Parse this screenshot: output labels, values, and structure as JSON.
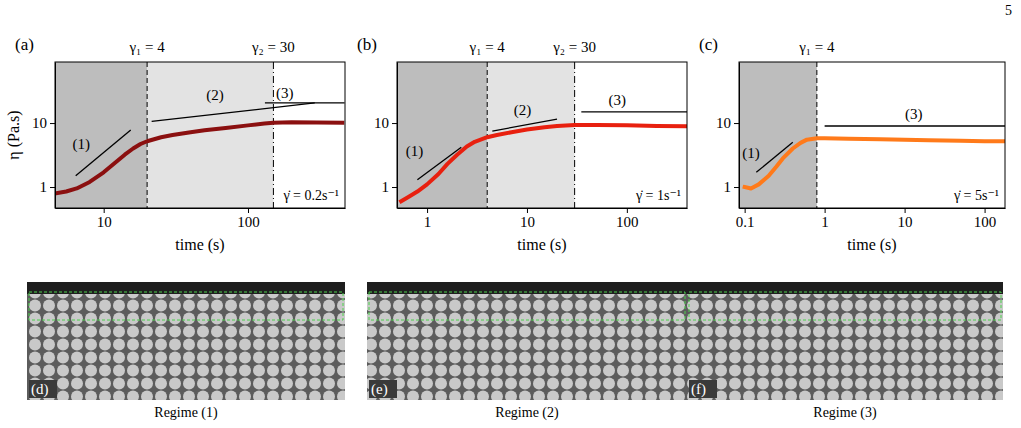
{
  "page_number": "5",
  "chart_data": [
    {
      "type": "line",
      "panel": "(a)",
      "log": true,
      "grid": false,
      "x_label": "time (s)",
      "y_label": "η (Pa.s)",
      "x": [
        4.7,
        5.5,
        6.5,
        8,
        10,
        12,
        14,
        16,
        18,
        20,
        25,
        30,
        40,
        50,
        70,
        100,
        130,
        150,
        200,
        300,
        450
      ],
      "values": [
        0.8,
        0.85,
        0.95,
        1.2,
        1.7,
        2.4,
        3.2,
        4.0,
        4.7,
        5.2,
        6.0,
        6.5,
        7.2,
        7.7,
        8.4,
        9.2,
        9.8,
        10.1,
        10.3,
        10.2,
        10.1
      ],
      "color": "#8b1010",
      "xlim": [
        4.6,
        470
      ],
      "ylim": [
        0.47,
        90
      ],
      "xticks": [
        10,
        100
      ],
      "yticks": [
        1,
        10
      ],
      "markers": [
        {
          "x": 20,
          "label": "γ₁ = 4",
          "line_style": "dashed"
        },
        {
          "x": 150,
          "label": "γ₂ = 30",
          "line_style": "dashdot"
        }
      ],
      "annotations": [
        {
          "text": "(1)",
          "x": 7,
          "y": 4.5,
          "line": {
            "x": [
              6.4,
              15.4
            ],
            "y": [
              1.5,
              7.8
            ]
          }
        },
        {
          "text": "(2)",
          "x": 59,
          "y": 25.5,
          "line": {
            "x": [
              21.5,
              290
            ],
            "y": [
              10.6,
              20.6
            ]
          }
        },
        {
          "text": "(3)",
          "x": 180,
          "y": 28,
          "line": {
            "x": [
              131,
              467
            ],
            "y": [
              20.6,
              20.6
            ]
          }
        }
      ],
      "rate_label": "γ̇ = 0.2s⁻¹"
    },
    {
      "type": "line",
      "panel": "(b)",
      "log": true,
      "grid": false,
      "x_label": "time (s)",
      "x": [
        0.55,
        0.65,
        0.8,
        1,
        1.3,
        1.6,
        2,
        2.5,
        3,
        4,
        5,
        7,
        10,
        15,
        20,
        30,
        50,
        100,
        200,
        400
      ],
      "values": [
        0.6,
        0.7,
        0.85,
        1.1,
        1.6,
        2.3,
        3.2,
        4.3,
        5.1,
        6.0,
        6.5,
        7.2,
        7.9,
        8.6,
        9.0,
        9.3,
        9.3,
        9.2,
        9.0,
        8.9
      ],
      "color": "#e8200f",
      "xlim": [
        0.5,
        400
      ],
      "ylim": [
        0.47,
        90
      ],
      "xticks": [
        1,
        10,
        100
      ],
      "yticks": [
        1,
        10
      ],
      "markers": [
        {
          "x": 4,
          "label": "γ₁ = 4",
          "line_style": "dashed"
        },
        {
          "x": 30,
          "label": "γ₂ = 30",
          "line_style": "dashdot"
        }
      ],
      "annotations": [
        {
          "text": "(1)",
          "x": 0.75,
          "y": 3.5,
          "line": {
            "x": [
              0.8,
              2.2
            ],
            "y": [
              1.3,
              4.2
            ]
          }
        },
        {
          "text": "(2)",
          "x": 9,
          "y": 15,
          "line": {
            "x": [
              4.5,
              20
            ],
            "y": [
              7.5,
              11.5
            ]
          }
        },
        {
          "text": "(3)",
          "x": 80,
          "y": 22,
          "line": {
            "x": [
              35,
              400
            ],
            "y": [
              15,
              15
            ]
          }
        }
      ],
      "rate_label": "γ̇ = 1s⁻¹"
    },
    {
      "type": "line",
      "panel": "(c)",
      "log": true,
      "grid": false,
      "x_label": "time (s)",
      "x": [
        0.1,
        0.12,
        0.15,
        0.2,
        0.25,
        0.3,
        0.4,
        0.5,
        0.6,
        0.8,
        1,
        2,
        5,
        10,
        20,
        50,
        100,
        180
      ],
      "values": [
        1.0,
        0.95,
        1.1,
        1.5,
        2.1,
        2.8,
        4.0,
        4.9,
        5.5,
        5.8,
        5.8,
        5.7,
        5.6,
        5.5,
        5.4,
        5.3,
        5.2,
        5.2
      ],
      "color": "#ff7a1a",
      "xlim": [
        0.085,
        180
      ],
      "ylim": [
        0.47,
        90
      ],
      "xticks": [
        0.1,
        1,
        10,
        100
      ],
      "yticks": [
        1,
        10
      ],
      "markers": [
        {
          "x": 0.8,
          "label": "γ₁ = 4",
          "line_style": "dashed"
        }
      ],
      "annotations": [
        {
          "text": "(1)",
          "x": 0.12,
          "y": 3.2,
          "line": {
            "x": [
              0.14,
              0.4
            ],
            "y": [
              1.7,
              5
            ]
          }
        },
        {
          "text": "(3)",
          "x": 13,
          "y": 13,
          "line": {
            "x": [
              1,
              180
            ],
            "y": [
              9,
              9
            ]
          }
        }
      ],
      "rate_label": "γ̇ = 5s⁻¹"
    }
  ],
  "images": [
    {
      "letter": "(d)",
      "caption": "Regime (1)"
    },
    {
      "letter": "(e)",
      "caption": "Regime (2)"
    },
    {
      "letter": "(f)",
      "caption": "Regime (3)"
    }
  ]
}
